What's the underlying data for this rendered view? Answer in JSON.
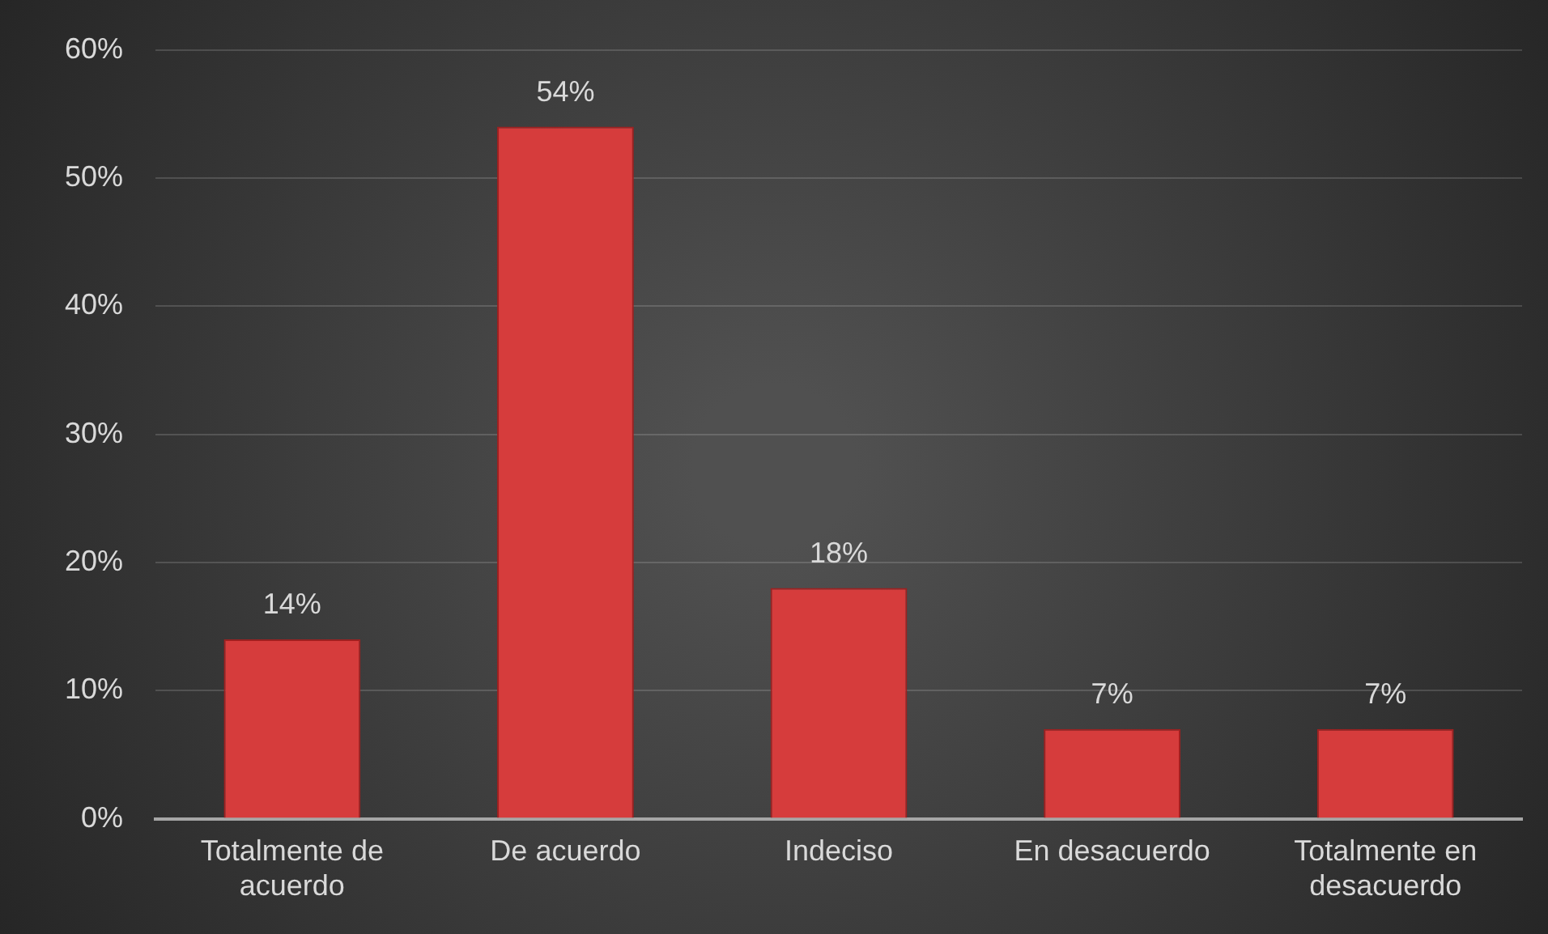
{
  "chart_data": {
    "type": "bar",
    "categories": [
      "Totalmente de acuerdo",
      "De acuerdo",
      "Indeciso",
      "En desacuerdo",
      "Totalmente en desacuerdo"
    ],
    "values": [
      14,
      54,
      18,
      7,
      7
    ],
    "color": "#d63c3c",
    "value_labels": [
      "14%",
      "54%",
      "18%",
      "7%",
      "7%"
    ],
    "ylim": [
      0,
      60
    ],
    "yticks": [
      {
        "value": 0,
        "label": "0%"
      },
      {
        "value": 10,
        "label": "10%"
      },
      {
        "value": 20,
        "label": "20%"
      },
      {
        "value": 30,
        "label": "30%"
      },
      {
        "value": 40,
        "label": "40%"
      },
      {
        "value": 50,
        "label": "50%"
      },
      {
        "value": 60,
        "label": "60%"
      }
    ],
    "grid": "y",
    "legend": false
  }
}
